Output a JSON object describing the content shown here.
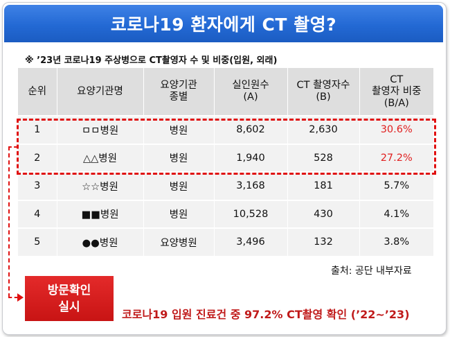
{
  "title": "코로나19 환자에게 CT 촬영?",
  "note": "※ ’23년 코로나19 주상병으로 CT촬영자 수 및 비중(입원, 외래)",
  "table": {
    "headers": [
      [
        "순위"
      ],
      [
        "요양기관명"
      ],
      [
        "요양기관",
        "종별"
      ],
      [
        "실인원수",
        "(A)"
      ],
      [
        "CT 촬영자수",
        "(B)"
      ],
      [
        "CT",
        "촬영자 비중",
        "(B/A)"
      ]
    ],
    "rows": [
      {
        "rank": "1",
        "name": "ㅁㅁ병원",
        "type": "병원",
        "a": "8,602",
        "b": "2,630",
        "ratio": "30.6%",
        "highlight": true
      },
      {
        "rank": "2",
        "name": "△△병원",
        "type": "병원",
        "a": "1,940",
        "b": "528",
        "ratio": "27.2%",
        "highlight": true
      },
      {
        "rank": "3",
        "name": "☆☆병원",
        "type": "병원",
        "a": "3,168",
        "b": "181",
        "ratio": "5.7%",
        "highlight": false
      },
      {
        "rank": "4",
        "name": "■■병원",
        "type": "병원",
        "a": "10,528",
        "b": "430",
        "ratio": "4.1%",
        "highlight": false
      },
      {
        "rank": "5",
        "name": "●●병원",
        "type": "요양병원",
        "a": "3,496",
        "b": "132",
        "ratio": "3.8%",
        "highlight": false
      }
    ]
  },
  "source": "출처: 공단 내부자료",
  "visit_box": {
    "line1": "방문확인",
    "line2": "실시"
  },
  "summary": "코로나19 입원 진료건 중 97.2% CT촬영 확인 (’22~’23)",
  "colors": {
    "banner": "#2369d4",
    "highlight": "#e01010",
    "visit": "#c81414"
  }
}
